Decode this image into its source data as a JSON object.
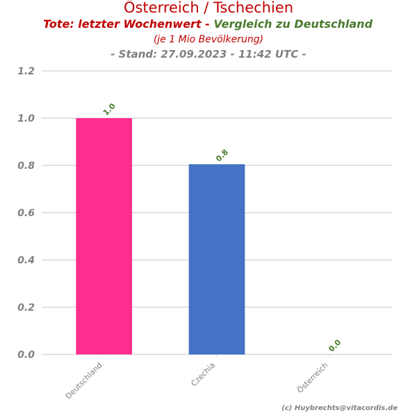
{
  "header": {
    "title": "Österreich / Tschechien",
    "subtitle_part1": "Tote: letzter Wochenwert - ",
    "subtitle_part2": "Vergleich zu Deutschland",
    "note": "(je 1 Mio Bevölkerung)",
    "stand": "- Stand: 27.09.2023 - 11:42 UTC -"
  },
  "credit": "(c) Huybrechts@vitacordis.de",
  "colors": {
    "title": "#c00000",
    "subtitle_green": "#4a7a2e",
    "axis_text": "#808080",
    "grid": "#d9d9d9",
    "data_label": "#4a7a2e"
  },
  "chart_data": {
    "type": "bar",
    "categories": [
      "Deutschland",
      "Czechia",
      "Österreich"
    ],
    "values": [
      1.0,
      0.805,
      0.0
    ],
    "value_labels": [
      "1.0",
      "0.8",
      "0.0"
    ],
    "bar_colors": [
      "#ff2d8e",
      "#4472c4",
      "#70ad47"
    ],
    "ylim": [
      0,
      1.2
    ],
    "yticks": [
      "0.0",
      "0.2",
      "0.4",
      "0.6",
      "0.8",
      "1.0",
      "1.2"
    ],
    "grid": true,
    "legend": "none"
  }
}
